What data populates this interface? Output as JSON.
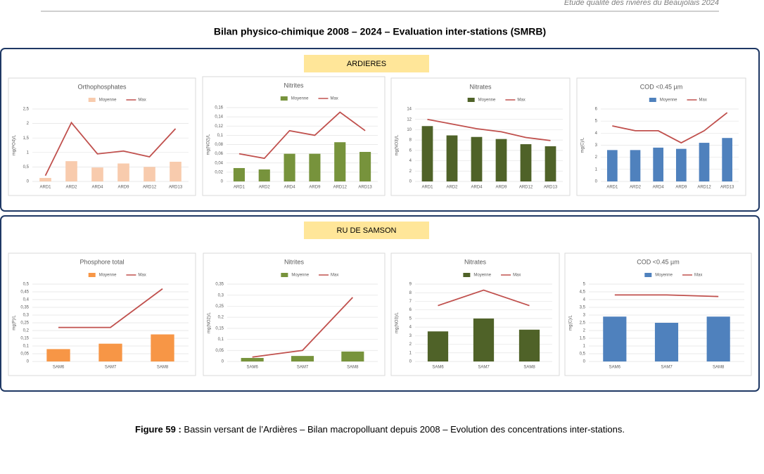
{
  "header": {
    "text": "Etude qualité des rivières du Beaujolais 2024"
  },
  "title": "Bilan physico-chimique 2008 – 2024 – Evaluation inter-stations (SMRB)",
  "sections": [
    {
      "label": "ARDIERES"
    },
    {
      "label": "RU DE SAMSON"
    }
  ],
  "caption": {
    "label": "Figure 59 :",
    "text": " Bassin versant de l’Ardières – Bilan macropolluant depuis 2008 – Evolution des concentrations inter-stations."
  },
  "chart_data": [
    {
      "type": "bar",
      "title": "Orthophosphates",
      "y_label": "mg(PO4)/L",
      "categories": [
        "ARD1",
        "ARD2",
        "ARD4",
        "ARD9",
        "ARD12",
        "ARD13"
      ],
      "series": [
        {
          "name": "Moyenne",
          "type": "bar",
          "color": "#f8cbad",
          "values": [
            0.12,
            0.7,
            0.48,
            0.62,
            0.5,
            0.68
          ]
        },
        {
          "name": "Max",
          "type": "line",
          "color": "#c0504d",
          "values": [
            0.2,
            2.03,
            0.95,
            1.05,
            0.85,
            1.82
          ]
        }
      ],
      "ylim": [
        0,
        2.5
      ],
      "yticks": [
        0,
        {
          "value": 0.5,
          "label": "0,5"
        },
        1,
        {
          "value": 1.5,
          "label": "1,5"
        },
        2,
        {
          "value": 2.5,
          "label": "2,5"
        }
      ],
      "grid": true
    },
    {
      "type": "bar",
      "title": "Nitrites",
      "y_label": "mg(NO2)/L",
      "categories": [
        "ARD1",
        "ARD2",
        "ARD4",
        "ARD9",
        "ARD12",
        "ARD13"
      ],
      "series": [
        {
          "name": "Moyenne",
          "type": "bar",
          "color": "#77933c",
          "values": [
            0.029,
            0.026,
            0.06,
            0.06,
            0.085,
            0.064
          ]
        },
        {
          "name": "Max",
          "type": "line",
          "color": "#c0504d",
          "values": [
            0.06,
            0.05,
            0.11,
            0.1,
            0.15,
            0.11
          ]
        }
      ],
      "ylim": [
        0,
        0.16
      ],
      "yticks": [
        0,
        {
          "value": 0.02,
          "label": "0,02"
        },
        {
          "value": 0.04,
          "label": "0,04"
        },
        {
          "value": 0.06,
          "label": "0,06"
        },
        {
          "value": 0.08,
          "label": "0,08"
        },
        {
          "value": 0.1,
          "label": "0,1"
        },
        {
          "value": 0.12,
          "label": "0,12"
        },
        {
          "value": 0.14,
          "label": "0,14"
        },
        {
          "value": 0.16,
          "label": "0,16"
        }
      ],
      "grid": true
    },
    {
      "type": "bar",
      "title": "Nitrates",
      "y_label": "mg(NO3)/L",
      "categories": [
        "ARD1",
        "ARD2",
        "ARD4",
        "ARD9",
        "ARD12",
        "ARD13"
      ],
      "series": [
        {
          "name": "Moyenne",
          "type": "bar",
          "color": "#4f6228",
          "values": [
            10.7,
            8.9,
            8.6,
            8.2,
            7.2,
            6.8
          ]
        },
        {
          "name": "Max",
          "type": "line",
          "color": "#c0504d",
          "values": [
            12,
            11.1,
            10.2,
            9.6,
            8.5,
            7.9
          ]
        }
      ],
      "ylim": [
        0,
        14
      ],
      "yticks": [
        0,
        2,
        4,
        6,
        8,
        10,
        12,
        14
      ],
      "grid": true
    },
    {
      "type": "bar",
      "title": "COD <0.45 µm",
      "y_label": "mg(C)/L",
      "categories": [
        "ARD1",
        "ARD2",
        "ARD4",
        "ARD9",
        "ARD12",
        "ARD13"
      ],
      "series": [
        {
          "name": "Moyenne",
          "type": "bar",
          "color": "#4f81bd",
          "values": [
            2.6,
            2.6,
            2.8,
            2.7,
            3.2,
            3.6
          ]
        },
        {
          "name": "Max",
          "type": "line",
          "color": "#c0504d",
          "values": [
            4.6,
            4.2,
            4.2,
            3.2,
            4.2,
            5.7
          ]
        }
      ],
      "ylim": [
        0,
        6
      ],
      "yticks": [
        0,
        1,
        2,
        3,
        4,
        5,
        6
      ],
      "grid": true
    },
    {
      "type": "bar",
      "title": "Phosphore total",
      "y_label": "mg(P)/L",
      "categories": [
        "SAM6",
        "SAM7",
        "SAM8"
      ],
      "series": [
        {
          "name": "Moyenne",
          "type": "bar",
          "color": "#f79646",
          "values": [
            0.08,
            0.115,
            0.175
          ]
        },
        {
          "name": "Max",
          "type": "line",
          "color": "#c0504d",
          "values": [
            0.22,
            0.22,
            0.47
          ]
        }
      ],
      "ylim": [
        0,
        0.5
      ],
      "yticks": [
        0,
        {
          "value": 0.05,
          "label": "0,05"
        },
        {
          "value": 0.1,
          "label": "0,1"
        },
        {
          "value": 0.15,
          "label": "0,15"
        },
        {
          "value": 0.2,
          "label": "0,2"
        },
        {
          "value": 0.25,
          "label": "0,25"
        },
        {
          "value": 0.3,
          "label": "0,3"
        },
        {
          "value": 0.35,
          "label": "0,35"
        },
        {
          "value": 0.4,
          "label": "0,4"
        },
        {
          "value": 0.45,
          "label": "0,45"
        },
        {
          "value": 0.5,
          "label": "0,5"
        }
      ],
      "grid": true
    },
    {
      "type": "bar",
      "title": "Nitrites",
      "y_label": "mg(NO2)/L",
      "categories": [
        "SAM6",
        "SAM7",
        "SAM8"
      ],
      "series": [
        {
          "name": "Moyenne",
          "type": "bar",
          "color": "#77933c",
          "values": [
            0.016,
            0.025,
            0.045
          ]
        },
        {
          "name": "Max",
          "type": "line",
          "color": "#c0504d",
          "values": [
            0.02,
            0.05,
            0.29
          ]
        }
      ],
      "ylim": [
        0,
        0.35
      ],
      "yticks": [
        0,
        {
          "value": 0.05,
          "label": "0,05"
        },
        {
          "value": 0.1,
          "label": "0,1"
        },
        {
          "value": 0.15,
          "label": "0,15"
        },
        {
          "value": 0.2,
          "label": "0,2"
        },
        {
          "value": 0.25,
          "label": "0,25"
        },
        {
          "value": 0.3,
          "label": "0,3"
        },
        {
          "value": 0.35,
          "label": "0,35"
        }
      ],
      "grid": true
    },
    {
      "type": "bar",
      "title": "Nitrates",
      "y_label": "mg(NO3)/L",
      "categories": [
        "SAM6",
        "SAM7",
        "SAM8"
      ],
      "series": [
        {
          "name": "Moyenne",
          "type": "bar",
          "color": "#4f6228",
          "values": [
            3.5,
            5.0,
            3.7
          ]
        },
        {
          "name": "Max",
          "type": "line",
          "color": "#c0504d",
          "values": [
            6.5,
            8.3,
            6.5
          ]
        }
      ],
      "ylim": [
        0,
        9
      ],
      "yticks": [
        0,
        1,
        2,
        3,
        4,
        5,
        6,
        7,
        8,
        9
      ],
      "grid": true
    },
    {
      "type": "bar",
      "title": "COD <0.45 µm",
      "y_label": "mg(C)/L",
      "categories": [
        "SAM6",
        "SAM7",
        "SAM8"
      ],
      "series": [
        {
          "name": "Moyenne",
          "type": "bar",
          "color": "#4f81bd",
          "values": [
            2.9,
            2.5,
            2.9
          ]
        },
        {
          "name": "Max",
          "type": "line",
          "color": "#c0504d",
          "values": [
            4.3,
            4.3,
            4.2
          ]
        }
      ],
      "ylim": [
        0,
        5
      ],
      "yticks": [
        0,
        {
          "value": 0.5,
          "label": "0,5"
        },
        1,
        {
          "value": 1.5,
          "label": "1,5"
        },
        2,
        {
          "value": 2.5,
          "label": "2,5"
        },
        3,
        {
          "value": 3.5,
          "label": "3,5"
        },
        4,
        {
          "value": 4.5,
          "label": "4,5"
        },
        5
      ],
      "grid": true
    }
  ]
}
